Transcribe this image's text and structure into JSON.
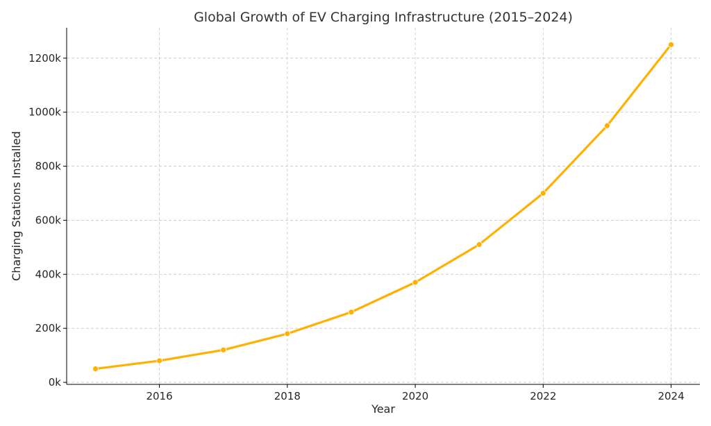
{
  "chart_data": {
    "type": "line",
    "title": "Global Growth of EV Charging Infrastructure (2015–2024)",
    "xlabel": "Year",
    "ylabel": "Charging Stations Installed",
    "x": [
      2015,
      2016,
      2017,
      2018,
      2019,
      2020,
      2021,
      2022,
      2023,
      2024
    ],
    "series": [
      {
        "values": [
          50000,
          80000,
          120000,
          180000,
          260000,
          370000,
          510000,
          700000,
          950000,
          1250000
        ],
        "color": "#FFB000",
        "marker": "circle"
      }
    ],
    "xlim": [
      2014.55,
      2024.45
    ],
    "ylim": [
      -7500,
      1312500
    ],
    "x_ticks": [
      2016,
      2018,
      2020,
      2022,
      2024
    ],
    "x_tick_labels": [
      "2016",
      "2018",
      "2020",
      "2022",
      "2024"
    ],
    "y_ticks": [
      0,
      200000,
      400000,
      600000,
      800000,
      1000000,
      1200000
    ],
    "y_tick_labels": [
      "0k",
      "200k",
      "400k",
      "600k",
      "800k",
      "1000k",
      "1200k"
    ],
    "grid": true,
    "grid_style": "dashed",
    "legend": "none"
  }
}
